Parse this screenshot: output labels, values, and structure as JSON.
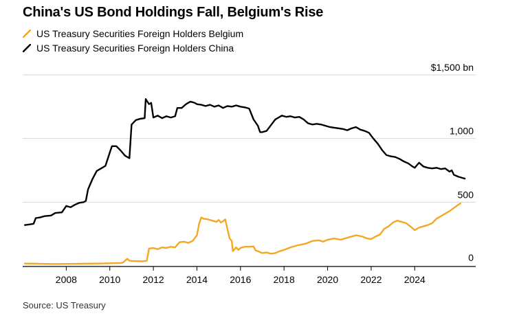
{
  "title": "China's US Bond Holdings Fall, Belgium's Rise",
  "source": "Source: US Treasury",
  "colors": {
    "belgium": "#f5a623",
    "china": "#000000",
    "grid": "#d4d4d4",
    "baseline": "#000000"
  },
  "legend": [
    {
      "label": "US Treasury Securities Foreign Holders Belgium",
      "series": "belgium"
    },
    {
      "label": "US Treasury Securities Foreign Holders China",
      "series": "china"
    }
  ],
  "chart_data": {
    "type": "line",
    "title": "China's US Bond Holdings Fall, Belgium's Rise",
    "xlabel": "",
    "ylabel": "",
    "unit_label": "$1,500 bn",
    "ylim": [
      0,
      1500
    ],
    "xlim": [
      2006.0,
      2026.8
    ],
    "y_ticks": [
      0,
      500,
      1000,
      1500
    ],
    "y_tick_labels": [
      "0",
      "500",
      "1,000",
      "$1,500 bn"
    ],
    "x_ticks": [
      2008,
      2010,
      2012,
      2014,
      2016,
      2018,
      2020,
      2022,
      2024
    ],
    "x_tick_labels": [
      "2008",
      "2010",
      "2012",
      "2014",
      "2016",
      "2018",
      "2020",
      "2022",
      "2024"
    ],
    "grid": "horizontal",
    "series": [
      {
        "name": "US Treasury Securities Foreign Holders Belgium",
        "key": "belgium",
        "points": [
          [
            2006.1,
            18
          ],
          [
            2006.5,
            17
          ],
          [
            2007.0,
            15
          ],
          [
            2007.5,
            14
          ],
          [
            2008.0,
            15
          ],
          [
            2008.5,
            16
          ],
          [
            2009.0,
            17
          ],
          [
            2009.5,
            18
          ],
          [
            2010.0,
            20
          ],
          [
            2010.5,
            22
          ],
          [
            2010.6,
            25
          ],
          [
            2010.8,
            55
          ],
          [
            2010.9,
            40
          ],
          [
            2011.0,
            38
          ],
          [
            2011.5,
            35
          ],
          [
            2011.7,
            40
          ],
          [
            2011.8,
            135
          ],
          [
            2012.0,
            140
          ],
          [
            2012.2,
            130
          ],
          [
            2012.4,
            145
          ],
          [
            2012.6,
            140
          ],
          [
            2012.8,
            150
          ],
          [
            2013.0,
            145
          ],
          [
            2013.2,
            185
          ],
          [
            2013.4,
            190
          ],
          [
            2013.6,
            180
          ],
          [
            2013.8,
            195
          ],
          [
            2014.0,
            240
          ],
          [
            2014.1,
            330
          ],
          [
            2014.2,
            380
          ],
          [
            2014.3,
            370
          ],
          [
            2014.5,
            365
          ],
          [
            2014.7,
            355
          ],
          [
            2014.9,
            345
          ],
          [
            2015.0,
            360
          ],
          [
            2015.1,
            340
          ],
          [
            2015.2,
            350
          ],
          [
            2015.3,
            365
          ],
          [
            2015.4,
            290
          ],
          [
            2015.5,
            215
          ],
          [
            2015.6,
            195
          ],
          [
            2015.65,
            115
          ],
          [
            2015.8,
            145
          ],
          [
            2015.9,
            125
          ],
          [
            2016.0,
            140
          ],
          [
            2016.2,
            150
          ],
          [
            2016.4,
            150
          ],
          [
            2016.6,
            152
          ],
          [
            2016.7,
            120
          ],
          [
            2016.8,
            115
          ],
          [
            2017.0,
            100
          ],
          [
            2017.2,
            105
          ],
          [
            2017.4,
            95
          ],
          [
            2017.6,
            100
          ],
          [
            2017.8,
            115
          ],
          [
            2018.0,
            125
          ],
          [
            2018.3,
            145
          ],
          [
            2018.6,
            160
          ],
          [
            2018.9,
            170
          ],
          [
            2019.0,
            175
          ],
          [
            2019.3,
            195
          ],
          [
            2019.6,
            200
          ],
          [
            2019.8,
            190
          ],
          [
            2020.0,
            205
          ],
          [
            2020.3,
            215
          ],
          [
            2020.6,
            205
          ],
          [
            2021.0,
            225
          ],
          [
            2021.3,
            240
          ],
          [
            2021.6,
            230
          ],
          [
            2021.8,
            215
          ],
          [
            2022.0,
            210
          ],
          [
            2022.2,
            230
          ],
          [
            2022.4,
            245
          ],
          [
            2022.6,
            290
          ],
          [
            2022.8,
            310
          ],
          [
            2023.0,
            340
          ],
          [
            2023.2,
            355
          ],
          [
            2023.4,
            345
          ],
          [
            2023.6,
            335
          ],
          [
            2023.8,
            310
          ],
          [
            2024.0,
            280
          ],
          [
            2024.2,
            300
          ],
          [
            2024.4,
            310
          ],
          [
            2024.6,
            320
          ],
          [
            2024.8,
            335
          ],
          [
            2025.0,
            370
          ],
          [
            2025.3,
            400
          ],
          [
            2025.6,
            430
          ],
          [
            2025.8,
            455
          ],
          [
            2026.0,
            480
          ],
          [
            2026.1,
            490
          ]
        ]
      },
      {
        "name": "US Treasury Securities Foreign Holders China",
        "key": "china",
        "points": [
          [
            2006.1,
            320
          ],
          [
            2006.3,
            325
          ],
          [
            2006.5,
            330
          ],
          [
            2006.6,
            375
          ],
          [
            2006.8,
            380
          ],
          [
            2007.0,
            390
          ],
          [
            2007.3,
            395
          ],
          [
            2007.5,
            415
          ],
          [
            2007.8,
            420
          ],
          [
            2008.0,
            470
          ],
          [
            2008.2,
            460
          ],
          [
            2008.4,
            480
          ],
          [
            2008.6,
            495
          ],
          [
            2008.8,
            500
          ],
          [
            2008.9,
            510
          ],
          [
            2009.0,
            600
          ],
          [
            2009.2,
            680
          ],
          [
            2009.4,
            745
          ],
          [
            2009.6,
            765
          ],
          [
            2009.8,
            785
          ],
          [
            2010.0,
            890
          ],
          [
            2010.1,
            940
          ],
          [
            2010.3,
            940
          ],
          [
            2010.5,
            905
          ],
          [
            2010.7,
            865
          ],
          [
            2010.9,
            845
          ],
          [
            2011.0,
            1110
          ],
          [
            2011.2,
            1145
          ],
          [
            2011.4,
            1155
          ],
          [
            2011.6,
            1160
          ],
          [
            2011.65,
            1310
          ],
          [
            2011.8,
            1270
          ],
          [
            2011.9,
            1280
          ],
          [
            2012.0,
            1165
          ],
          [
            2012.2,
            1180
          ],
          [
            2012.4,
            1160
          ],
          [
            2012.6,
            1175
          ],
          [
            2012.8,
            1165
          ],
          [
            2013.0,
            1175
          ],
          [
            2013.1,
            1240
          ],
          [
            2013.3,
            1240
          ],
          [
            2013.5,
            1270
          ],
          [
            2013.7,
            1290
          ],
          [
            2013.9,
            1280
          ],
          [
            2014.0,
            1270
          ],
          [
            2014.2,
            1265
          ],
          [
            2014.4,
            1255
          ],
          [
            2014.6,
            1265
          ],
          [
            2014.8,
            1250
          ],
          [
            2015.0,
            1260
          ],
          [
            2015.2,
            1240
          ],
          [
            2015.4,
            1255
          ],
          [
            2015.6,
            1250
          ],
          [
            2015.8,
            1260
          ],
          [
            2016.0,
            1250
          ],
          [
            2016.2,
            1245
          ],
          [
            2016.4,
            1235
          ],
          [
            2016.6,
            1150
          ],
          [
            2016.8,
            1100
          ],
          [
            2016.9,
            1050
          ],
          [
            2017.0,
            1050
          ],
          [
            2017.2,
            1060
          ],
          [
            2017.4,
            1105
          ],
          [
            2017.6,
            1150
          ],
          [
            2017.8,
            1170
          ],
          [
            2017.9,
            1180
          ],
          [
            2018.1,
            1170
          ],
          [
            2018.3,
            1175
          ],
          [
            2018.5,
            1165
          ],
          [
            2018.7,
            1170
          ],
          [
            2018.9,
            1150
          ],
          [
            2019.1,
            1120
          ],
          [
            2019.3,
            1110
          ],
          [
            2019.5,
            1115
          ],
          [
            2019.7,
            1110
          ],
          [
            2019.9,
            1100
          ],
          [
            2020.1,
            1090
          ],
          [
            2020.3,
            1085
          ],
          [
            2020.5,
            1080
          ],
          [
            2020.7,
            1075
          ],
          [
            2020.9,
            1065
          ],
          [
            2021.1,
            1080
          ],
          [
            2021.3,
            1090
          ],
          [
            2021.5,
            1070
          ],
          [
            2021.7,
            1060
          ],
          [
            2021.9,
            1045
          ],
          [
            2022.1,
            1000
          ],
          [
            2022.3,
            960
          ],
          [
            2022.5,
            910
          ],
          [
            2022.7,
            870
          ],
          [
            2022.9,
            860
          ],
          [
            2023.1,
            855
          ],
          [
            2023.3,
            840
          ],
          [
            2023.5,
            820
          ],
          [
            2023.7,
            805
          ],
          [
            2023.9,
            780
          ],
          [
            2024.0,
            770
          ],
          [
            2024.2,
            810
          ],
          [
            2024.4,
            780
          ],
          [
            2024.6,
            770
          ],
          [
            2024.8,
            765
          ],
          [
            2025.0,
            770
          ],
          [
            2025.2,
            760
          ],
          [
            2025.4,
            765
          ],
          [
            2025.6,
            740
          ],
          [
            2025.7,
            750
          ],
          [
            2025.8,
            715
          ],
          [
            2026.0,
            700
          ],
          [
            2026.2,
            690
          ],
          [
            2026.3,
            685
          ]
        ]
      }
    ]
  }
}
